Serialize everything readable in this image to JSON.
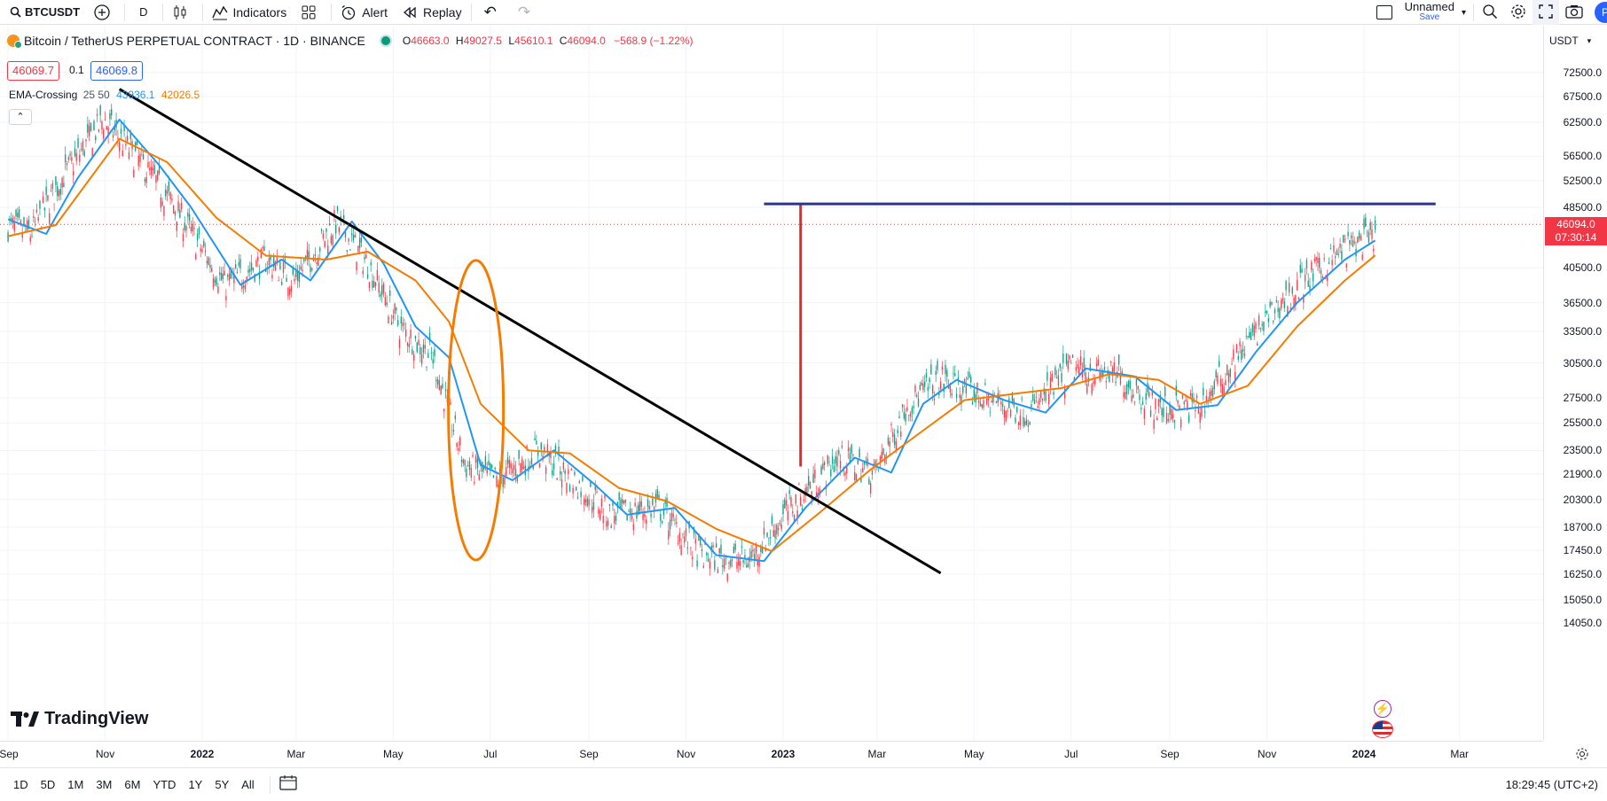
{
  "toolbar": {
    "symbol": "BTCUSDT",
    "interval": "D",
    "indicators_label": "Indicators",
    "alert_label": "Alert",
    "replay_label": "Replay",
    "layout_name": "Unnamed",
    "save_label": "Save",
    "avatar_letter": "P"
  },
  "legend": {
    "title": "Bitcoin / TetherUS PERPETUAL CONTRACT · 1D · BINANCE",
    "o_label": "O",
    "o_value": "46663.0",
    "h_label": "H",
    "h_value": "49027.5",
    "l_label": "L",
    "l_value": "45610.1",
    "c_label": "C",
    "c_value": "46094.0",
    "change": "−568.9 (−1.22%)",
    "bid": "46069.7",
    "spread": "0.1",
    "ask": "46069.8"
  },
  "ema": {
    "name": "EMA-Crossing",
    "params": "25 50",
    "fast_value": "43936.1",
    "slow_value": "42026.5",
    "fast_color": "#2196f3",
    "slow_color": "#f57c00"
  },
  "currency": "USDT",
  "current_price": {
    "price": "46094.0",
    "countdown": "07:30:14"
  },
  "price_ticks": [
    "72500.0",
    "67500.0",
    "62500.0",
    "56500.0",
    "52500.0",
    "48500.0",
    "40500.0",
    "36500.0",
    "33500.0",
    "30500.0",
    "27500.0",
    "25500.0",
    "23500.0",
    "21900.0",
    "20300.0",
    "18700.0",
    "17450.0",
    "16250.0",
    "15050.0",
    "14050.0"
  ],
  "time_ticks": [
    "Sep",
    "Nov",
    "2022",
    "Mar",
    "May",
    "Jul",
    "Sep",
    "Nov",
    "2023",
    "Mar",
    "May",
    "Jul",
    "Sep",
    "Nov",
    "2024",
    "Mar"
  ],
  "ranges": [
    "1D",
    "5D",
    "1M",
    "3M",
    "6M",
    "YTD",
    "1Y",
    "5Y",
    "All"
  ],
  "clock": "18:29:45 (UTC+2)",
  "logo_text": "TradingView",
  "chart_data": {
    "type": "candlestick",
    "title": "Bitcoin / TetherUS PERPETUAL CONTRACT · 1D · BINANCE",
    "x_range": [
      "2021-09",
      "2024-03"
    ],
    "y_scale": "log",
    "ylim": [
      14050,
      72500
    ],
    "series": [
      {
        "name": "EMA 25",
        "color": "#2196f3",
        "points": [
          [
            "2021-09-01",
            46800
          ],
          [
            "2021-09-25",
            44800
          ],
          [
            "2021-10-15",
            53000
          ],
          [
            "2021-11-10",
            63000
          ],
          [
            "2021-12-05",
            55000
          ],
          [
            "2021-12-25",
            48500
          ],
          [
            "2022-01-25",
            38500
          ],
          [
            "2022-02-20",
            41500
          ],
          [
            "2022-03-10",
            39000
          ],
          [
            "2022-04-05",
            46500
          ],
          [
            "2022-04-25",
            41000
          ],
          [
            "2022-05-15",
            34000
          ],
          [
            "2022-06-05",
            31000
          ],
          [
            "2022-06-25",
            22500
          ],
          [
            "2022-07-15",
            21500
          ],
          [
            "2022-08-10",
            23500
          ],
          [
            "2022-09-05",
            21200
          ],
          [
            "2022-09-25",
            19400
          ],
          [
            "2022-10-25",
            19800
          ],
          [
            "2022-11-20",
            17200
          ],
          [
            "2022-12-20",
            16900
          ],
          [
            "2023-01-15",
            19800
          ],
          [
            "2023-02-15",
            23000
          ],
          [
            "2023-03-10",
            22000
          ],
          [
            "2023-03-30",
            27000
          ],
          [
            "2023-04-20",
            29000
          ],
          [
            "2023-05-20",
            27300
          ],
          [
            "2023-06-15",
            26300
          ],
          [
            "2023-07-10",
            30000
          ],
          [
            "2023-08-10",
            29300
          ],
          [
            "2023-09-05",
            26500
          ],
          [
            "2023-10-01",
            26900
          ],
          [
            "2023-10-25",
            31500
          ],
          [
            "2023-11-20",
            36500
          ],
          [
            "2023-12-20",
            41500
          ],
          [
            "2024-01-08",
            43936
          ]
        ]
      },
      {
        "name": "EMA 50",
        "color": "#f57c00",
        "points": [
          [
            "2021-09-01",
            44500
          ],
          [
            "2021-10-01",
            46000
          ],
          [
            "2021-11-10",
            59500
          ],
          [
            "2021-12-10",
            55500
          ],
          [
            "2022-01-10",
            47000
          ],
          [
            "2022-02-10",
            42000
          ],
          [
            "2022-03-20",
            41500
          ],
          [
            "2022-04-15",
            42500
          ],
          [
            "2022-05-15",
            39000
          ],
          [
            "2022-06-05",
            34500
          ],
          [
            "2022-06-25",
            27000
          ],
          [
            "2022-07-25",
            23500
          ],
          [
            "2022-08-20",
            23300
          ],
          [
            "2022-09-20",
            21000
          ],
          [
            "2022-10-20",
            20200
          ],
          [
            "2022-11-20",
            18600
          ],
          [
            "2022-12-25",
            17400
          ],
          [
            "2023-01-25",
            19600
          ],
          [
            "2023-02-25",
            22200
          ],
          [
            "2023-03-25",
            24500
          ],
          [
            "2023-04-25",
            27300
          ],
          [
            "2023-05-25",
            27800
          ],
          [
            "2023-06-25",
            28300
          ],
          [
            "2023-07-25",
            29500
          ],
          [
            "2023-08-25",
            29000
          ],
          [
            "2023-09-20",
            27000
          ],
          [
            "2023-10-20",
            28500
          ],
          [
            "2023-11-20",
            34000
          ],
          [
            "2023-12-20",
            39000
          ],
          [
            "2024-01-08",
            42026
          ]
        ]
      }
    ],
    "annotations": [
      {
        "type": "trend-line",
        "color": "#000000"
      },
      {
        "type": "ellipse",
        "color": "#f57c00"
      },
      {
        "type": "vertical-line",
        "color": "#d32f2f"
      },
      {
        "type": "horizontal-line",
        "color": "#283593",
        "level": 49000
      }
    ]
  }
}
